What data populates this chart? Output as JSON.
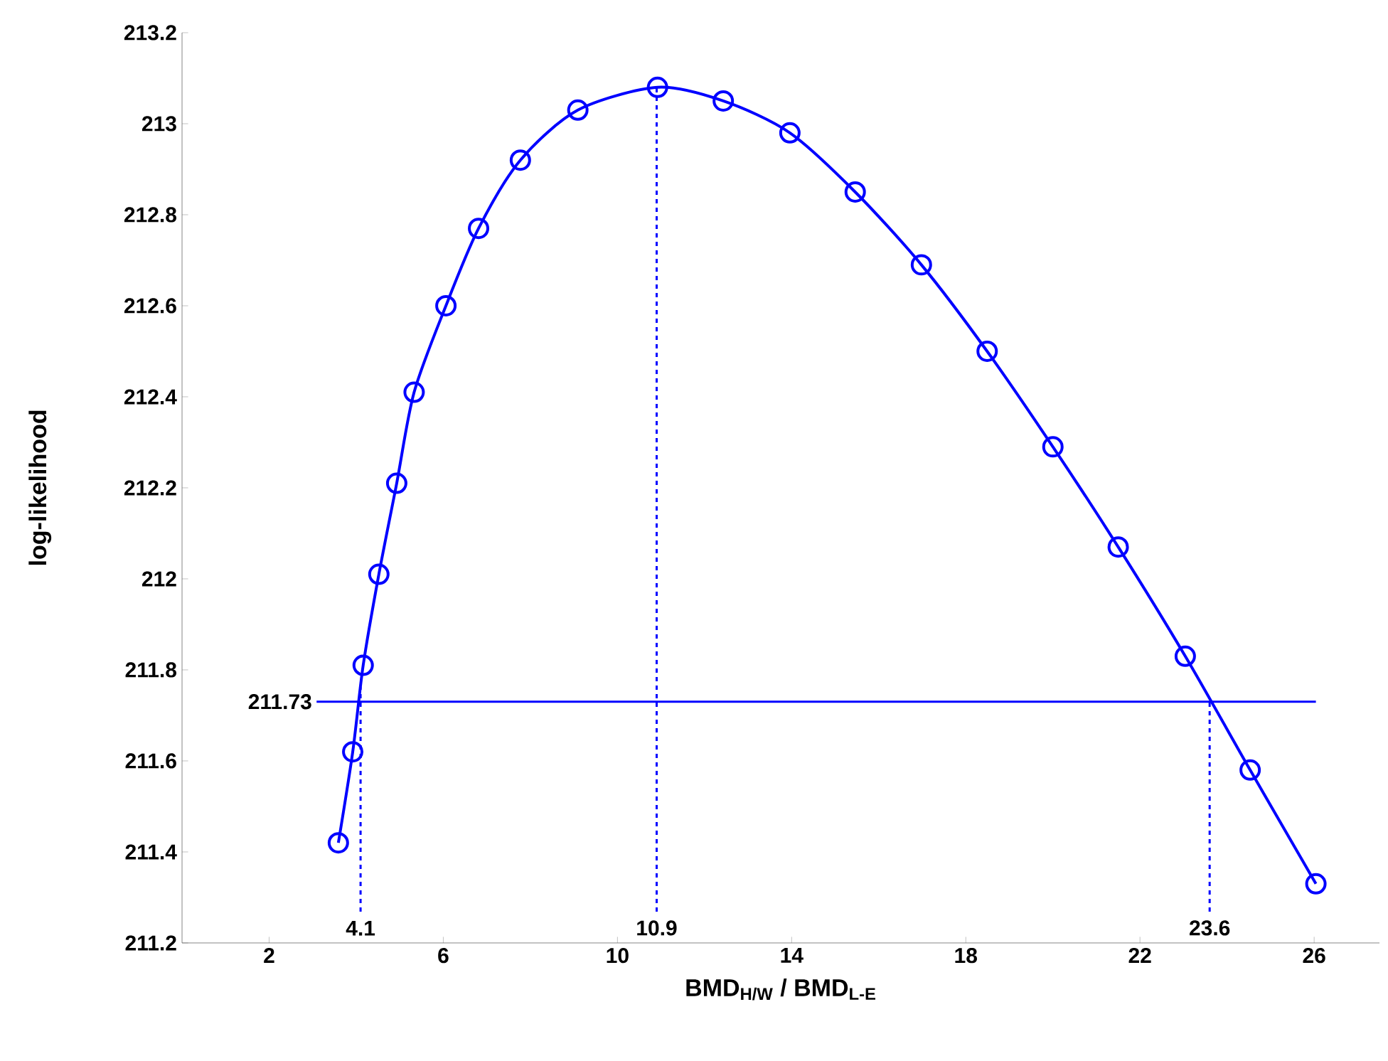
{
  "chart_data": {
    "type": "line",
    "xlabel": "BMD$_{H/W}$ / BMD$_{L-E}$",
    "ylabel": "log-likelihood",
    "series": [
      {
        "color": "#0000ff",
        "marker": "circle",
        "line_style": "solid",
        "x": [
          3.59,
          3.92,
          4.16,
          4.52,
          4.93,
          5.33,
          6.06,
          6.81,
          7.77,
          9.09,
          10.92,
          12.43,
          13.96,
          15.46,
          16.98,
          18.49,
          20.0,
          21.5,
          23.04,
          24.53,
          26.04
        ],
        "values": [
          211.42,
          211.62,
          211.81,
          212.01,
          212.21,
          212.41,
          212.6,
          212.77,
          212.92,
          213.03,
          213.08,
          213.05,
          212.98,
          212.85,
          212.69,
          212.5,
          212.29,
          212.07,
          211.83,
          211.58,
          211.33
        ]
      }
    ],
    "xlim": [
      0,
      27.5
    ],
    "ylim": [
      211.2,
      213.2
    ],
    "xticks": [
      2,
      6,
      10,
      14,
      18,
      22,
      26
    ],
    "yticks": [
      211.2,
      211.4,
      211.6,
      211.8,
      212,
      212.2,
      212.4,
      212.6,
      212.8,
      213,
      213.2
    ],
    "ref_lines": [
      {
        "axis": "y",
        "value": 211.73,
        "label": "211.73",
        "color": "#0000ff",
        "line_style": "solid"
      },
      {
        "axis": "x",
        "value": 4.1,
        "label": "4.1",
        "color": "#0000ff",
        "line_style": "dashed"
      },
      {
        "axis": "x",
        "value": 10.9,
        "label": "10.9",
        "color": "#0000ff",
        "line_style": "dashed"
      },
      {
        "axis": "x",
        "value": 23.6,
        "label": "23.6",
        "color": "#0000ff",
        "line_style": "dashed"
      }
    ]
  }
}
